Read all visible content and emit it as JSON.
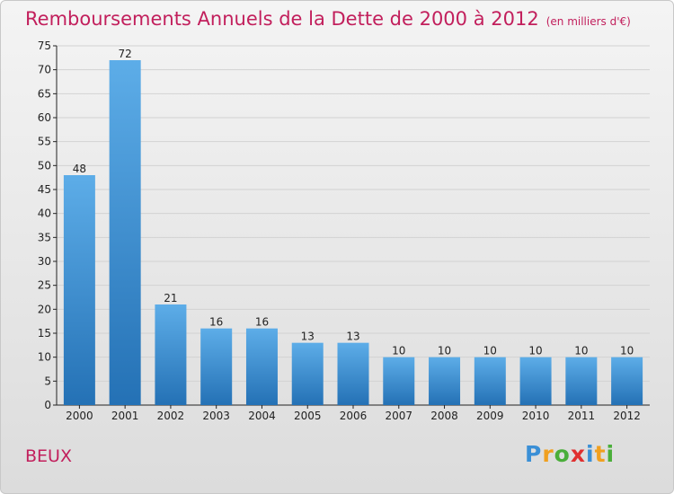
{
  "chart_data": {
    "type": "bar",
    "title": "Remboursements Annuels de la Dette de 2000 à 2012",
    "subtitle": "(en milliers d'€)",
    "categories": [
      "2000",
      "2001",
      "2002",
      "2003",
      "2004",
      "2005",
      "2006",
      "2007",
      "2008",
      "2009",
      "2010",
      "2011",
      "2012"
    ],
    "values": [
      48,
      72,
      21,
      16,
      16,
      13,
      13,
      10,
      10,
      10,
      10,
      10,
      10
    ],
    "ylim": [
      0,
      75
    ],
    "yticks": [
      0,
      5,
      10,
      15,
      20,
      25,
      30,
      35,
      40,
      45,
      50,
      55,
      60,
      65,
      70,
      75
    ],
    "grid": true,
    "bar_color_top": "#5dade8",
    "bar_color_bottom": "#2471b5"
  },
  "footer": {
    "location": "BEUX"
  },
  "brand": {
    "letters": [
      "P",
      "r",
      "o",
      "x",
      "i",
      "t",
      "i"
    ],
    "colors": [
      "#3a8fd6",
      "#f0a020",
      "#4aae3a",
      "#e03030",
      "#3a8fd6",
      "#f0a020",
      "#4aae3a"
    ]
  },
  "colors": {
    "title": "#c21f5c",
    "axis": "#222222",
    "grid": "#d2d2d2"
  }
}
